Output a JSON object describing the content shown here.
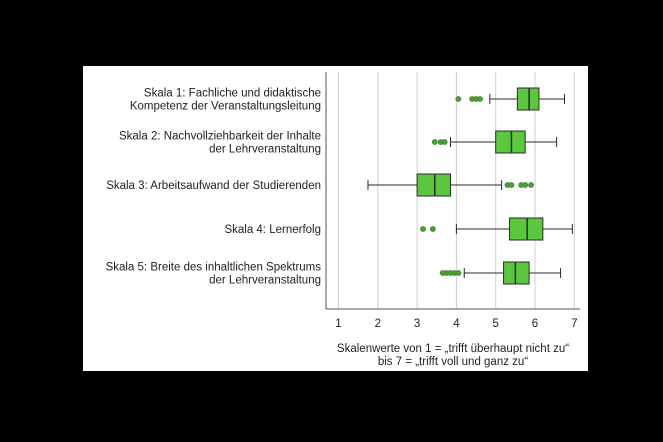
{
  "chart_data": {
    "type": "boxplot",
    "title": "",
    "xlabel_lines": [
      "Skalenwerte von 1 = „trifft überhaupt nicht zu“",
      "bis 7 = „trifft voll und ganz zu“"
    ],
    "xlim": [
      0.7,
      7.15
    ],
    "xticks": [
      1,
      2,
      3,
      4,
      5,
      6,
      7
    ],
    "grid": true,
    "colors": {
      "box_fill": "#5cc63e",
      "box_edge": "#2b2b2b",
      "outlier": "#4e9e36",
      "grid": "#d0d0d0"
    },
    "categories": [
      {
        "label_lines": [
          "Skala 1: Fachliche und didaktische",
          "Kompetenz der Veranstaltungsleitung"
        ],
        "whisker_low": 4.85,
        "q1": 5.55,
        "median": 5.85,
        "q3": 6.1,
        "whisker_high": 6.75,
        "outliers": [
          4.05,
          4.4,
          4.5,
          4.6
        ]
      },
      {
        "label_lines": [
          "Skala 2: Nachvollziehbarkeit der Inhalte",
          "der Lehrveranstaltung"
        ],
        "whisker_low": 3.85,
        "q1": 5.0,
        "median": 5.4,
        "q3": 5.75,
        "whisker_high": 6.55,
        "outliers": [
          3.45,
          3.6,
          3.7
        ]
      },
      {
        "label_lines": [
          "Skala 3: Arbeitsaufwand der Studierenden"
        ],
        "whisker_low": 1.75,
        "q1": 3.0,
        "median": 3.45,
        "q3": 3.85,
        "whisker_high": 5.15,
        "outliers": [
          5.3,
          5.4,
          5.65,
          5.75,
          5.9
        ]
      },
      {
        "label_lines": [
          "Skala 4: Lernerfolg"
        ],
        "whisker_low": 4.0,
        "q1": 5.35,
        "median": 5.8,
        "q3": 6.2,
        "whisker_high": 6.95,
        "outliers": [
          3.15,
          3.4
        ]
      },
      {
        "label_lines": [
          "Skala 5: Breite des inhaltlichen Spektrums",
          "der Lehrveranstaltung"
        ],
        "whisker_low": 4.2,
        "q1": 5.2,
        "median": 5.5,
        "q3": 5.85,
        "whisker_high": 6.65,
        "outliers": [
          3.65,
          3.75,
          3.85,
          3.95,
          4.05
        ]
      }
    ]
  }
}
